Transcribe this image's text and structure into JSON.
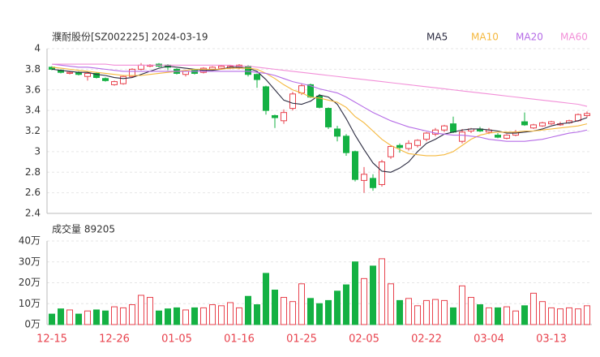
{
  "chart_data": [
    {
      "type": "candlestick",
      "title": "濮耐股份[SZ002225] 2024-03-19",
      "categories": [
        "12-15",
        null,
        null,
        null,
        null,
        null,
        null,
        "12-26",
        null,
        null,
        null,
        null,
        null,
        null,
        "01-05",
        null,
        null,
        null,
        null,
        null,
        null,
        "01-16",
        null,
        null,
        null,
        null,
        null,
        null,
        "01-25",
        null,
        null,
        null,
        null,
        null,
        null,
        "02-05",
        null,
        null,
        null,
        null,
        null,
        null,
        "02-22",
        null,
        null,
        null,
        null,
        null,
        null,
        "03-04",
        null,
        null,
        null,
        null,
        null,
        null,
        "03-13",
        null,
        null,
        null,
        null
      ],
      "open": [
        3.82,
        3.79,
        3.76,
        3.77,
        3.73,
        3.76,
        3.71,
        3.65,
        3.66,
        3.73,
        3.8,
        3.83,
        3.85,
        3.84,
        3.8,
        3.75,
        3.79,
        3.77,
        3.8,
        3.81,
        3.81,
        3.82,
        3.83,
        3.75,
        3.63,
        3.35,
        3.3,
        3.42,
        3.57,
        3.65,
        3.54,
        3.42,
        3.22,
        3.15,
        3.0,
        2.72,
        2.74,
        2.68,
        2.95,
        3.06,
        3.03,
        3.06,
        3.12,
        3.17,
        3.21,
        3.27,
        3.1,
        3.2,
        3.22,
        3.19,
        3.16,
        3.13,
        3.16,
        3.29,
        3.23,
        3.25,
        3.27,
        3.26,
        3.28,
        3.3,
        3.35
      ],
      "high": [
        3.83,
        3.8,
        3.78,
        3.78,
        3.77,
        3.77,
        3.72,
        3.69,
        3.74,
        3.81,
        3.86,
        3.85,
        3.86,
        3.85,
        3.81,
        3.79,
        3.8,
        3.82,
        3.83,
        3.84,
        3.84,
        3.85,
        3.84,
        3.76,
        3.64,
        3.36,
        3.41,
        3.58,
        3.66,
        3.66,
        3.56,
        3.43,
        3.25,
        3.17,
        3.01,
        2.85,
        2.78,
        2.92,
        3.06,
        3.08,
        3.11,
        3.12,
        3.19,
        3.23,
        3.26,
        3.34,
        3.22,
        3.23,
        3.24,
        3.23,
        3.18,
        3.17,
        3.21,
        3.38,
        3.27,
        3.29,
        3.3,
        3.29,
        3.31,
        3.37,
        3.39
      ],
      "low": [
        3.79,
        3.76,
        3.75,
        3.74,
        3.69,
        3.71,
        3.68,
        3.64,
        3.65,
        3.72,
        3.79,
        3.82,
        3.82,
        3.79,
        3.75,
        3.73,
        3.75,
        3.76,
        3.79,
        3.8,
        3.8,
        3.8,
        3.73,
        3.62,
        3.36,
        3.23,
        3.27,
        3.4,
        3.55,
        3.52,
        3.42,
        3.22,
        3.1,
        2.96,
        2.71,
        2.6,
        2.62,
        2.66,
        2.93,
        2.99,
        3.01,
        3.04,
        3.1,
        3.15,
        3.19,
        3.18,
        3.08,
        3.18,
        3.19,
        3.17,
        3.13,
        3.12,
        3.15,
        3.25,
        3.22,
        3.24,
        3.26,
        3.25,
        3.27,
        3.29,
        3.33
      ],
      "close": [
        3.8,
        3.77,
        3.77,
        3.75,
        3.76,
        3.72,
        3.69,
        3.68,
        3.73,
        3.8,
        3.84,
        3.84,
        3.83,
        3.82,
        3.76,
        3.78,
        3.76,
        3.81,
        3.82,
        3.83,
        3.83,
        3.84,
        3.75,
        3.7,
        3.4,
        3.33,
        3.38,
        3.56,
        3.64,
        3.53,
        3.43,
        3.24,
        3.15,
        2.99,
        2.73,
        2.78,
        2.65,
        2.9,
        3.05,
        3.04,
        3.08,
        3.11,
        3.18,
        3.21,
        3.25,
        3.19,
        3.19,
        3.22,
        3.2,
        3.21,
        3.14,
        3.16,
        3.19,
        3.26,
        3.26,
        3.28,
        3.29,
        3.27,
        3.3,
        3.36,
        3.37
      ],
      "series": [
        {
          "name": "MA5",
          "color": "#2b2b40",
          "values": [
            3.8,
            3.79,
            3.78,
            3.77,
            3.77,
            3.75,
            3.74,
            3.72,
            3.71,
            3.72,
            3.75,
            3.78,
            3.81,
            3.83,
            3.82,
            3.81,
            3.8,
            3.79,
            3.79,
            3.8,
            3.82,
            3.82,
            3.81,
            3.78,
            3.7,
            3.6,
            3.5,
            3.47,
            3.46,
            3.49,
            3.55,
            3.53,
            3.46,
            3.32,
            3.16,
            3.02,
            2.89,
            2.81,
            2.8,
            2.84,
            2.9,
            3.0,
            3.08,
            3.12,
            3.17,
            3.19,
            3.21,
            3.22,
            3.22,
            3.21,
            3.2,
            3.18,
            3.18,
            3.19,
            3.2,
            3.22,
            3.25,
            3.27,
            3.28,
            3.3,
            3.33
          ]
        },
        {
          "name": "MA10",
          "color": "#f5b83d",
          "values": [
            3.82,
            3.81,
            3.8,
            3.79,
            3.78,
            3.77,
            3.76,
            3.75,
            3.74,
            3.74,
            3.74,
            3.75,
            3.76,
            3.77,
            3.78,
            3.79,
            3.8,
            3.8,
            3.8,
            3.8,
            3.81,
            3.81,
            3.81,
            3.8,
            3.76,
            3.71,
            3.65,
            3.6,
            3.57,
            3.53,
            3.52,
            3.5,
            3.48,
            3.43,
            3.34,
            3.28,
            3.2,
            3.12,
            3.06,
            3.02,
            2.98,
            2.97,
            2.96,
            2.96,
            2.97,
            3.0,
            3.06,
            3.12,
            3.16,
            3.18,
            3.19,
            3.19,
            3.19,
            3.2,
            3.2,
            3.21,
            3.22,
            3.23,
            3.24,
            3.25,
            3.27
          ]
        },
        {
          "name": "MA20",
          "color": "#b56be6",
          "values": [
            3.85,
            3.84,
            3.83,
            3.82,
            3.82,
            3.81,
            3.8,
            3.79,
            3.78,
            3.78,
            3.78,
            3.78,
            3.78,
            3.78,
            3.78,
            3.78,
            3.78,
            3.78,
            3.78,
            3.78,
            3.78,
            3.78,
            3.78,
            3.77,
            3.76,
            3.74,
            3.71,
            3.68,
            3.66,
            3.64,
            3.61,
            3.59,
            3.57,
            3.53,
            3.48,
            3.43,
            3.38,
            3.34,
            3.3,
            3.27,
            3.24,
            3.22,
            3.2,
            3.18,
            3.17,
            3.16,
            3.16,
            3.15,
            3.14,
            3.12,
            3.11,
            3.1,
            3.1,
            3.1,
            3.11,
            3.12,
            3.14,
            3.16,
            3.18,
            3.19,
            3.21
          ]
        },
        {
          "name": "MA60",
          "color": "#f28fd8",
          "values": [
            3.85,
            3.85,
            3.85,
            3.85,
            3.85,
            3.85,
            3.85,
            3.84,
            3.84,
            3.84,
            3.84,
            3.84,
            3.84,
            3.84,
            3.84,
            3.84,
            3.84,
            3.84,
            3.84,
            3.84,
            3.84,
            3.83,
            3.83,
            3.82,
            3.81,
            3.8,
            3.79,
            3.78,
            3.77,
            3.76,
            3.75,
            3.74,
            3.73,
            3.72,
            3.71,
            3.7,
            3.69,
            3.68,
            3.67,
            3.66,
            3.65,
            3.64,
            3.63,
            3.62,
            3.61,
            3.6,
            3.59,
            3.58,
            3.57,
            3.56,
            3.55,
            3.54,
            3.53,
            3.52,
            3.51,
            3.5,
            3.49,
            3.48,
            3.47,
            3.46,
            3.44
          ]
        }
      ],
      "up_color": "#e8424d",
      "down_color": "#14b143",
      "ylim": [
        2.4,
        4
      ],
      "yticks": [
        2.4,
        2.6,
        2.8,
        3,
        3.2,
        3.4,
        3.6,
        3.8,
        4
      ],
      "grid": true
    },
    {
      "type": "bar",
      "title": "成交量 89205",
      "values": [
        5,
        7.5,
        7,
        5,
        6.5,
        7,
        6.5,
        8.5,
        8,
        9.5,
        14,
        13,
        6.5,
        7.5,
        8,
        7,
        8,
        8,
        9.5,
        9,
        10.5,
        8,
        13.5,
        9.5,
        24.5,
        16.5,
        13,
        11,
        19.5,
        12.5,
        10,
        11.5,
        16,
        19,
        30,
        22,
        28,
        31.5,
        19.5,
        11.5,
        12.5,
        9,
        11.5,
        12,
        11.5,
        8,
        18.5,
        13,
        9.5,
        8,
        8,
        8.5,
        6.5,
        9,
        15,
        11,
        8,
        7.5,
        8,
        7.5,
        9
      ],
      "ylim": [
        0,
        40
      ],
      "yticks": [
        {
          "value": 0,
          "label": "0万"
        },
        {
          "value": 10,
          "label": "10万"
        },
        {
          "value": 20,
          "label": "20万"
        },
        {
          "value": 30,
          "label": "30万"
        },
        {
          "value": 40,
          "label": "40万"
        }
      ],
      "grid": true
    }
  ]
}
